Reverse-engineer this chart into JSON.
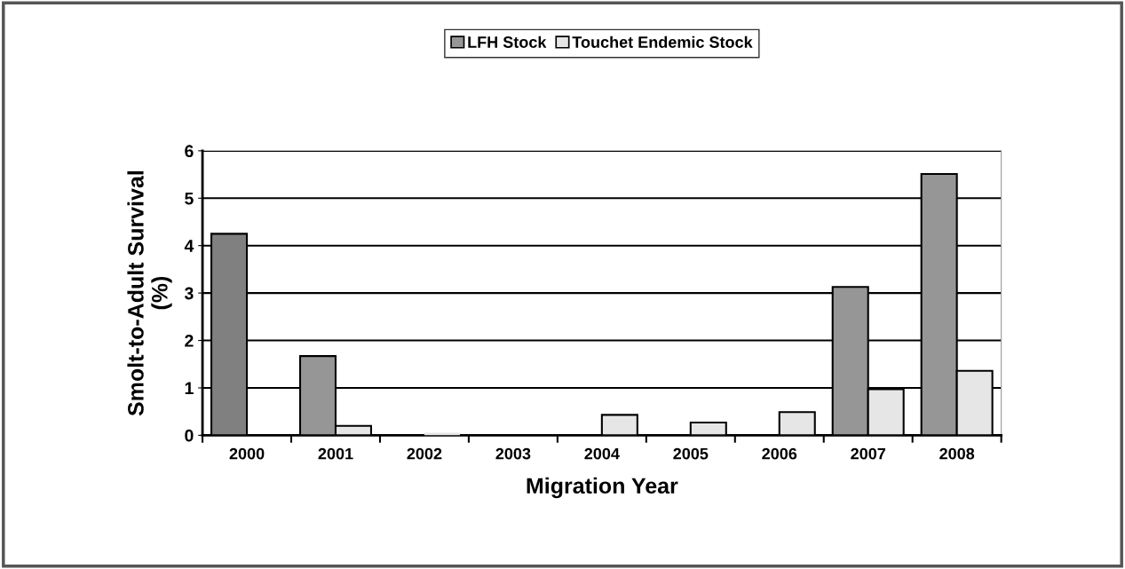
{
  "chart_data": {
    "type": "bar",
    "xlabel": "Migration Year",
    "ylabel": "Smolt-to-Adult Survival\n(%)",
    "categories": [
      "2000",
      "2001",
      "2002",
      "2003",
      "2004",
      "2005",
      "2006",
      "2007",
      "2008"
    ],
    "series": [
      {
        "name": "LFH Stock",
        "color": "#969696",
        "colors": [
          "#808080",
          "#969696",
          "#969696",
          "#969696",
          "#969696",
          "#969696",
          "#969696",
          "#969696",
          "#969696"
        ],
        "values": [
          4.25,
          1.67,
          null,
          null,
          null,
          null,
          null,
          3.13,
          5.51
        ]
      },
      {
        "name": "Touchet Endemic Stock",
        "color": "#e6e6e6",
        "values": [
          null,
          0.2,
          0,
          null,
          0.43,
          0.27,
          0.49,
          0.97,
          1.36
        ]
      }
    ],
    "ylim": [
      0,
      6
    ],
    "yticks": [
      0,
      1,
      2,
      3,
      4,
      5,
      6
    ],
    "grid": "y",
    "legend": "top"
  }
}
